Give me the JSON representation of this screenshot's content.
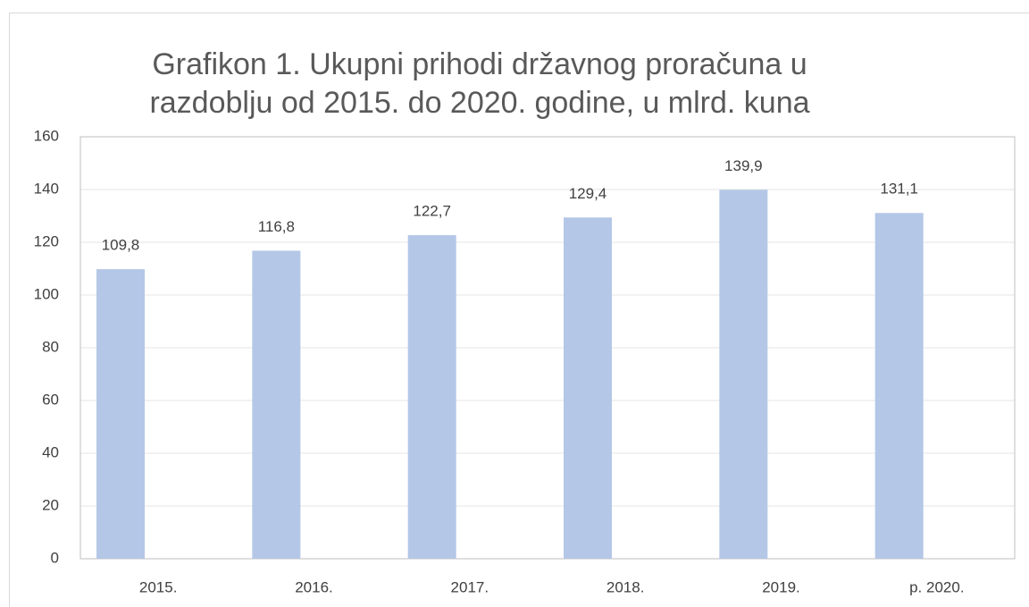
{
  "chart_data": {
    "type": "bar",
    "title": [
      "Grafikon 1. Ukupni prihodi državnog proračuna u",
      "razdoblju od 2015. do 2020. godine, u mlrd. kuna"
    ],
    "categories": [
      "2015.",
      "2016.",
      "2017.",
      "2018.",
      "2019.",
      "p. 2020."
    ],
    "values": [
      109.8,
      116.8,
      122.7,
      129.4,
      139.9,
      131.1
    ],
    "value_labels": [
      "109,8",
      "116,8",
      "122,7",
      "129,4",
      "139,9",
      "131,1"
    ],
    "color": "#b4c7e7",
    "ylim": [
      0,
      160
    ],
    "yticks": [
      0,
      20,
      40,
      60,
      80,
      100,
      120,
      140,
      160
    ],
    "grid": true
  }
}
